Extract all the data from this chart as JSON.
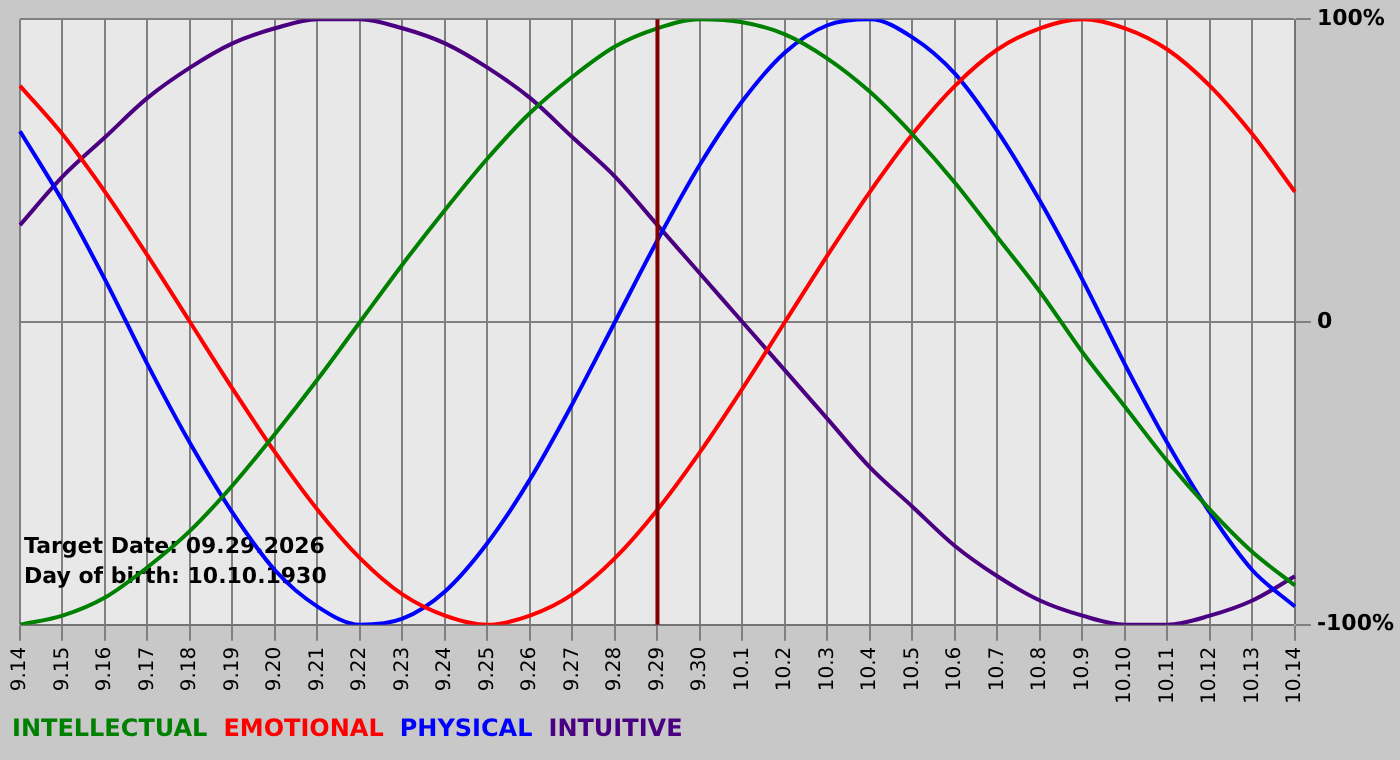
{
  "chart_data": {
    "type": "line",
    "categories": [
      "9.14",
      "9.15",
      "9.16",
      "9.17",
      "9.18",
      "9.19",
      "9.20",
      "9.21",
      "9.22",
      "9.23",
      "9.24",
      "9.25",
      "9.26",
      "9.27",
      "9.28",
      "9.29",
      "9.30",
      "10.1",
      "10.2",
      "10.3",
      "10.4",
      "10.5",
      "10.6",
      "10.7",
      "10.8",
      "10.9",
      "10.10",
      "10.11",
      "10.12",
      "10.13",
      "10.14"
    ],
    "series": [
      {
        "name": "INTELLECTUAL",
        "color": "#008000",
        "values": [
          -100,
          -97,
          -91,
          -81,
          -69,
          -54,
          -37,
          -19,
          0,
          19,
          37,
          54,
          69,
          81,
          91,
          97,
          100,
          99,
          95,
          87,
          76,
          62,
          46,
          28,
          10,
          -10,
          -28,
          -46,
          -62,
          -76,
          -87
        ]
      },
      {
        "name": "EMOTIONAL",
        "color": "#ff0000",
        "values": [
          78,
          62,
          43,
          22,
          0,
          -22,
          -43,
          -62,
          -78,
          -90,
          -97,
          -100,
          -97,
          -90,
          -78,
          -62,
          -43,
          -22,
          0,
          22,
          43,
          62,
          78,
          90,
          97,
          100,
          97,
          90,
          78,
          62,
          43
        ]
      },
      {
        "name": "PHYSICAL",
        "color": "#0000ff",
        "values": [
          63,
          40,
          14,
          -14,
          -40,
          -63,
          -82,
          -94,
          -100,
          -98,
          -89,
          -73,
          -52,
          -27,
          0,
          27,
          52,
          73,
          89,
          98,
          100,
          94,
          82,
          63,
          40,
          14,
          -14,
          -40,
          -63,
          -82,
          -94
        ]
      },
      {
        "name": "INTUITIVE",
        "color": "#4b0082",
        "values": [
          32,
          48,
          61,
          74,
          84,
          92,
          97,
          100,
          100,
          97,
          92,
          84,
          74,
          61,
          48,
          32,
          16,
          0,
          -16,
          -32,
          -48,
          -61,
          -74,
          -84,
          -92,
          -97,
          -100,
          -100,
          -97,
          -92,
          -84
        ]
      }
    ],
    "ylim": [
      -100,
      100
    ],
    "yticks": [
      {
        "value": -100,
        "label": "-100%"
      },
      {
        "value": 0,
        "label": "0"
      },
      {
        "value": 100,
        "label": "100%"
      }
    ],
    "grid": true,
    "legend": "bottom left",
    "marker": "none",
    "line_style": "solid",
    "ref_lines": [
      {
        "axis": "x",
        "value": "9.29",
        "color": "#800000"
      }
    ],
    "annotations": [
      "Target Date: 09.29.2026",
      "Day of birth: 10.10.1930"
    ]
  }
}
